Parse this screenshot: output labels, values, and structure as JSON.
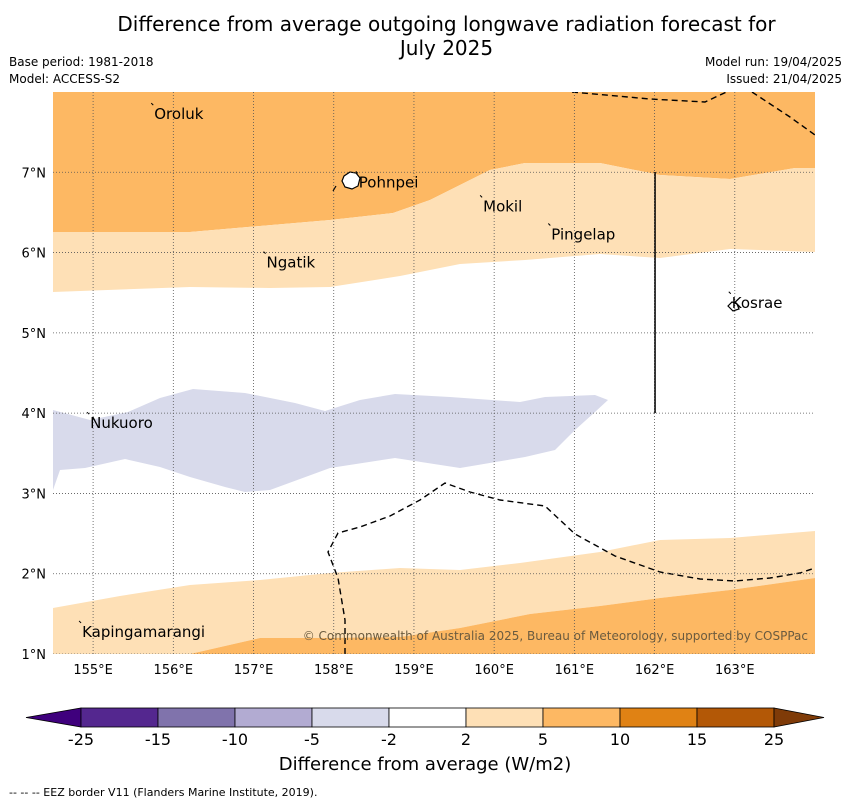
{
  "header": {
    "title_line1": "Difference from average outgoing longwave radiation forecast for",
    "title_line2": "July 2025",
    "base_period": "Base period: 1981-2018",
    "model": "Model: ACCESS-S2",
    "model_run": "Model run: 19/04/2025",
    "issued": "Issued: 21/04/2025"
  },
  "map": {
    "lon_range": [
      154.5,
      164.0
    ],
    "lat_range": [
      1.0,
      8.0
    ],
    "x_ticks": [
      "155°E",
      "156°E",
      "157°E",
      "158°E",
      "159°E",
      "160°E",
      "161°E",
      "162°E",
      "163°E"
    ],
    "y_ticks": [
      "1°N",
      "2°N",
      "3°N",
      "4°N",
      "5°N",
      "6°N",
      "7°N"
    ],
    "grid": "dotted",
    "places": [
      {
        "name": "Oroluk",
        "lon": 155.75,
        "lat": 7.7
      },
      {
        "name": "Pohnpei",
        "lon": 158.3,
        "lat": 6.85
      },
      {
        "name": "Mokil",
        "lon": 159.85,
        "lat": 6.55
      },
      {
        "name": "Pingelap",
        "lon": 160.7,
        "lat": 6.2
      },
      {
        "name": "Ngatik",
        "lon": 157.15,
        "lat": 5.85
      },
      {
        "name": "Kosrae",
        "lon": 162.95,
        "lat": 5.35
      },
      {
        "name": "Nukuoro",
        "lon": 154.95,
        "lat": 3.85
      },
      {
        "name": "Kapingamarangi",
        "lon": 154.85,
        "lat": 1.25
      }
    ],
    "copyright": "© Commonwealth of Australia 2025, Bureau of Meteorology, supported by COSPPac"
  },
  "colorbar": {
    "label": "Difference from average (W/m2)",
    "ticks": [
      "-25",
      "-15",
      "-10",
      "-5",
      "-2",
      "2",
      "5",
      "10",
      "15",
      "25"
    ],
    "colors": [
      "#3f007d",
      "#54278f",
      "#8073ac",
      "#b2abd2",
      "#d8daeb",
      "#ffffff",
      "#fee0b6",
      "#fdb863",
      "#e08214",
      "#b35806",
      "#7f3b08"
    ],
    "extend": "both"
  },
  "footer": {
    "eez_note": "--  --  -- EEZ border V11 (Flanders Marine Institute, 2019)."
  }
}
